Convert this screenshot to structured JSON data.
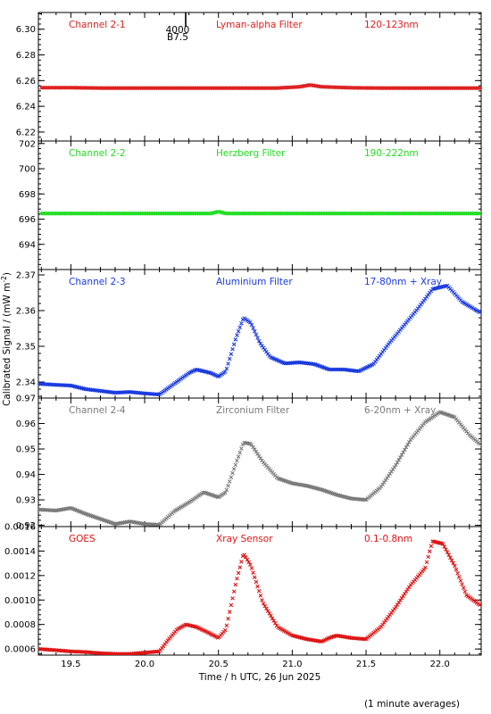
{
  "figure": {
    "ylabel": "Calibrated Signal / (mW m",
    "ylabel_sup": "-2",
    "ylabel_close": ")",
    "xlabel": "Time / h UTC, 26 Jun 2025",
    "footnote": "(1 minute averages)",
    "marker_top": "4000",
    "marker_bottom": "B7.5"
  },
  "chart_data": [
    {
      "type": "scatter",
      "channel": "Channel 2-1",
      "filter": "Lyman-alpha Filter",
      "band": "120-123nm",
      "color": "#dd2020",
      "xlim": [
        19.28,
        22.28
      ],
      "ylim": [
        6.213,
        6.313
      ],
      "yticks": [
        6.22,
        6.24,
        6.26,
        6.28,
        6.3
      ],
      "ytick_labels": [
        "6.22",
        "6.24",
        "6.26",
        "6.28",
        "6.30"
      ],
      "xticks": [
        19.5,
        20.0,
        20.5,
        21.0,
        21.5,
        22.0
      ],
      "x": [
        19.3,
        19.5,
        19.7,
        19.9,
        20.1,
        20.3,
        20.5,
        20.7,
        20.9,
        21.05,
        21.12,
        21.2,
        21.4,
        21.6,
        21.8,
        22.0,
        22.27
      ],
      "y": [
        6.2545,
        6.2545,
        6.2542,
        6.2542,
        6.2542,
        6.2542,
        6.2542,
        6.2542,
        6.2542,
        6.2552,
        6.2566,
        6.2552,
        6.2544,
        6.2542,
        6.2542,
        6.2542,
        6.2542
      ]
    },
    {
      "type": "scatter",
      "channel": "Channel 2-2",
      "filter": "Herzberg Filter",
      "band": "190-222nm",
      "color": "#22dd22",
      "xlim": [
        19.28,
        22.28
      ],
      "ylim": [
        692.0,
        702.2
      ],
      "yticks": [
        694,
        696,
        698,
        700,
        702
      ],
      "ytick_labels": [
        "694",
        "696",
        "698",
        "700",
        "702"
      ],
      "xticks": [
        19.5,
        20.0,
        20.5,
        21.0,
        21.5,
        22.0
      ],
      "x": [
        19.3,
        19.6,
        19.9,
        20.2,
        20.45,
        20.5,
        20.55,
        20.8,
        21.1,
        21.4,
        21.7,
        22.0,
        22.27
      ],
      "y": [
        696.45,
        696.45,
        696.45,
        696.45,
        696.45,
        696.6,
        696.45,
        696.45,
        696.45,
        696.45,
        696.45,
        696.45,
        696.45
      ]
    },
    {
      "type": "scatter",
      "channel": "Channel 2-3",
      "filter": "Aluminium Filter",
      "band": "17-80nm + Xray",
      "color": "#1a3adf",
      "xlim": [
        19.28,
        22.28
      ],
      "ylim": [
        2.3355,
        2.3715
      ],
      "yticks": [
        2.34,
        2.35,
        2.36,
        2.37
      ],
      "ytick_labels": [
        "2.34",
        "2.35",
        "2.36",
        "2.37"
      ],
      "xticks": [
        19.5,
        20.0,
        20.5,
        21.0,
        21.5,
        22.0
      ],
      "x": [
        19.28,
        19.4,
        19.5,
        19.6,
        19.7,
        19.8,
        19.9,
        20.0,
        20.1,
        20.2,
        20.3,
        20.35,
        20.45,
        20.5,
        20.55,
        20.62,
        20.67,
        20.72,
        20.78,
        20.85,
        20.95,
        21.05,
        21.15,
        21.25,
        21.35,
        21.45,
        21.55,
        21.65,
        21.75,
        21.85,
        21.95,
        22.05,
        22.15,
        22.27
      ],
      "y": [
        2.3395,
        2.3392,
        2.339,
        2.338,
        2.3375,
        2.337,
        2.3372,
        2.3368,
        2.3365,
        2.3395,
        2.3425,
        2.3435,
        2.3425,
        2.3415,
        2.343,
        2.3525,
        2.358,
        2.3565,
        2.351,
        2.347,
        2.3452,
        2.3455,
        2.345,
        2.3435,
        2.3435,
        2.343,
        2.345,
        2.3505,
        2.3555,
        2.3605,
        2.366,
        2.367,
        2.3625,
        2.3595
      ]
    },
    {
      "type": "scatter",
      "channel": "Channel 2-4",
      "filter": "Zirconium Filter",
      "band": "6-20nm + Xray",
      "color": "#7a7a7a",
      "xlim": [
        19.28,
        22.28
      ],
      "ylim": [
        0.9195,
        0.97
      ],
      "yticks": [
        0.92,
        0.93,
        0.94,
        0.95,
        0.96,
        0.97
      ],
      "ytick_labels": [
        "0.92",
        "0.93",
        "0.94",
        "0.95",
        "0.96",
        "0.97"
      ],
      "xticks": [
        19.5,
        20.0,
        20.5,
        21.0,
        21.5,
        22.0
      ],
      "x": [
        19.28,
        19.4,
        19.5,
        19.6,
        19.7,
        19.8,
        19.9,
        20.0,
        20.1,
        20.2,
        20.3,
        20.4,
        20.5,
        20.55,
        20.62,
        20.67,
        20.72,
        20.8,
        20.9,
        21.0,
        21.1,
        21.2,
        21.3,
        21.4,
        21.5,
        21.6,
        21.7,
        21.8,
        21.9,
        22.0,
        22.1,
        22.2,
        22.27
      ],
      "y": [
        0.9262,
        0.9258,
        0.9268,
        0.9245,
        0.9225,
        0.9205,
        0.9215,
        0.9205,
        0.9202,
        0.9255,
        0.929,
        0.933,
        0.931,
        0.933,
        0.9445,
        0.9525,
        0.952,
        0.945,
        0.9385,
        0.9365,
        0.9355,
        0.934,
        0.932,
        0.9305,
        0.93,
        0.935,
        0.9435,
        0.9535,
        0.9605,
        0.9645,
        0.9625,
        0.9555,
        0.952
      ]
    },
    {
      "type": "scatter",
      "channel": "GOES",
      "filter": "Xray Sensor",
      "band": "0.1-0.8nm",
      "color": "#dd1515",
      "xlim": [
        19.28,
        22.28
      ],
      "ylim": [
        0.00055,
        0.0016
      ],
      "yticks": [
        0.0006,
        0.0008,
        0.001,
        0.0012,
        0.0014,
        0.0016
      ],
      "ytick_labels": [
        "0.0006",
        "0.0008",
        "0.0010",
        "0.0012",
        "0.0014",
        "0.0016"
      ],
      "xticks": [
        19.5,
        20.0,
        20.5,
        21.0,
        21.5,
        22.0
      ],
      "xtick_labels": [
        "19.5",
        "20.0",
        "20.5",
        "21.0",
        "21.5",
        "22.0"
      ],
      "x": [
        19.28,
        19.4,
        19.5,
        19.6,
        19.7,
        19.8,
        19.9,
        20.0,
        20.1,
        20.15,
        20.22,
        20.28,
        20.35,
        20.42,
        20.5,
        20.55,
        20.62,
        20.67,
        20.72,
        20.8,
        20.9,
        21.0,
        21.1,
        21.2,
        21.25,
        21.3,
        21.4,
        21.5,
        21.6,
        21.7,
        21.8,
        21.9,
        21.95,
        22.02,
        22.1,
        22.18,
        22.27
      ],
      "y": [
        0.0006,
        0.00059,
        0.00058,
        0.000575,
        0.000565,
        0.00056,
        0.00056,
        0.00057,
        0.00058,
        0.00066,
        0.00076,
        0.0008,
        0.00078,
        0.00074,
        0.00069,
        0.00076,
        0.00115,
        0.00138,
        0.00128,
        0.00098,
        0.00078,
        0.00071,
        0.00068,
        0.00066,
        0.00069,
        0.00071,
        0.00069,
        0.00068,
        0.00078,
        0.00094,
        0.00112,
        0.00126,
        0.00148,
        0.00146,
        0.00128,
        0.00104,
        0.00096
      ]
    }
  ]
}
